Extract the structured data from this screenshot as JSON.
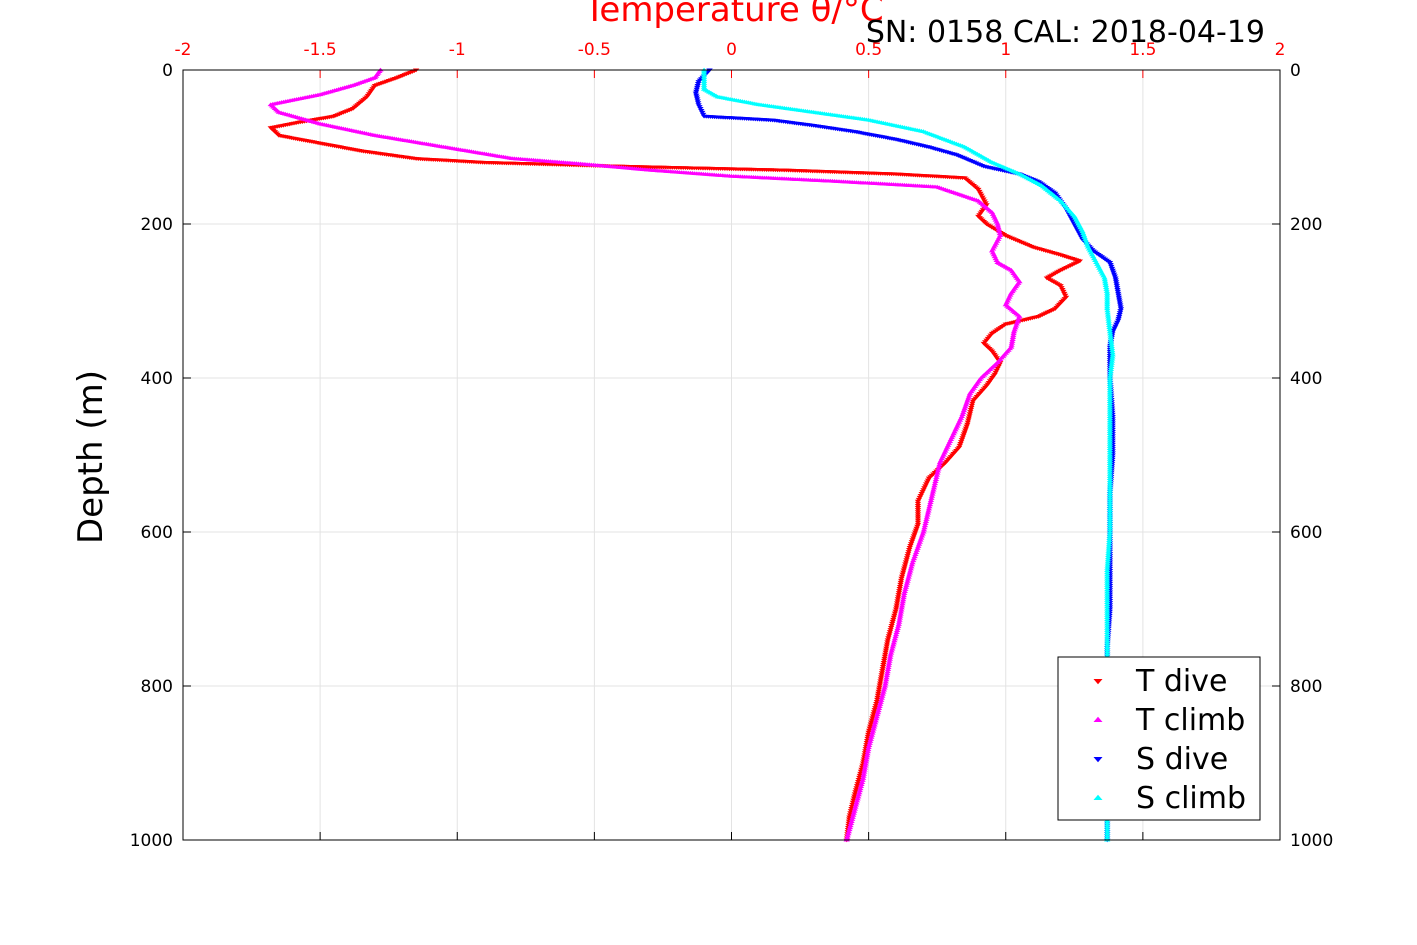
{
  "chart_data": {
    "type": "scatter",
    "title": "Temperature θ/°C",
    "subtitle": "SN: 0158  CAL: 2018-04-19",
    "ylabel": "Depth (m)",
    "xlim": [
      -2,
      2
    ],
    "ylim": [
      0,
      1000
    ],
    "y_reversed": true,
    "x_axis_position": "top",
    "x_ticks": [
      "-2",
      "-1.5",
      "-1",
      "-0.5",
      "0",
      "0.5",
      "1",
      "1.5",
      "2"
    ],
    "y_ticks": [
      "0",
      "200",
      "400",
      "600",
      "800",
      "1000"
    ],
    "grid": true,
    "legend_placement": "bottom-right",
    "series": [
      {
        "name": "T dive",
        "marker": "triangle-down",
        "color": "#ff0000",
        "points": [
          [
            -1.15,
            0
          ],
          [
            -1.22,
            10
          ],
          [
            -1.3,
            20
          ],
          [
            -1.33,
            35
          ],
          [
            -1.38,
            50
          ],
          [
            -1.45,
            60
          ],
          [
            -1.58,
            68
          ],
          [
            -1.68,
            75
          ],
          [
            -1.65,
            85
          ],
          [
            -1.5,
            95
          ],
          [
            -1.35,
            105
          ],
          [
            -1.15,
            115
          ],
          [
            -0.9,
            120
          ],
          [
            -0.4,
            125
          ],
          [
            0.2,
            130
          ],
          [
            0.6,
            135
          ],
          [
            0.85,
            140
          ],
          [
            0.9,
            155
          ],
          [
            0.93,
            175
          ],
          [
            0.9,
            190
          ],
          [
            0.93,
            200
          ],
          [
            1.0,
            215
          ],
          [
            1.1,
            230
          ],
          [
            1.2,
            240
          ],
          [
            1.27,
            248
          ],
          [
            1.2,
            260
          ],
          [
            1.15,
            270
          ],
          [
            1.2,
            280
          ],
          [
            1.22,
            295
          ],
          [
            1.18,
            310
          ],
          [
            1.12,
            320
          ],
          [
            1.0,
            330
          ],
          [
            0.95,
            342
          ],
          [
            0.92,
            355
          ],
          [
            0.95,
            365
          ],
          [
            0.98,
            380
          ],
          [
            0.96,
            395
          ],
          [
            0.93,
            410
          ],
          [
            0.88,
            430
          ],
          [
            0.86,
            460
          ],
          [
            0.83,
            490
          ],
          [
            0.78,
            510
          ],
          [
            0.72,
            530
          ],
          [
            0.68,
            560
          ],
          [
            0.68,
            590
          ],
          [
            0.65,
            620
          ],
          [
            0.62,
            660
          ],
          [
            0.6,
            700
          ],
          [
            0.57,
            740
          ],
          [
            0.55,
            780
          ],
          [
            0.53,
            820
          ],
          [
            0.5,
            860
          ],
          [
            0.48,
            900
          ],
          [
            0.45,
            940
          ],
          [
            0.43,
            970
          ],
          [
            0.42,
            1000
          ]
        ]
      },
      {
        "name": "T climb",
        "marker": "triangle-up",
        "color": "#ff00ff",
        "points": [
          [
            0.42,
            1000
          ],
          [
            0.45,
            960
          ],
          [
            0.48,
            920
          ],
          [
            0.5,
            880
          ],
          [
            0.53,
            840
          ],
          [
            0.56,
            800
          ],
          [
            0.58,
            760
          ],
          [
            0.61,
            720
          ],
          [
            0.63,
            680
          ],
          [
            0.66,
            640
          ],
          [
            0.7,
            600
          ],
          [
            0.72,
            570
          ],
          [
            0.74,
            540
          ],
          [
            0.76,
            510
          ],
          [
            0.8,
            480
          ],
          [
            0.84,
            450
          ],
          [
            0.87,
            420
          ],
          [
            0.91,
            400
          ],
          [
            0.97,
            380
          ],
          [
            1.02,
            360
          ],
          [
            1.03,
            340
          ],
          [
            1.05,
            320
          ],
          [
            1.0,
            305
          ],
          [
            1.02,
            290
          ],
          [
            1.05,
            275
          ],
          [
            1.02,
            260
          ],
          [
            0.97,
            250
          ],
          [
            0.95,
            235
          ],
          [
            0.98,
            215
          ],
          [
            0.97,
            200
          ],
          [
            0.95,
            185
          ],
          [
            0.9,
            170
          ],
          [
            0.75,
            152
          ],
          [
            0.4,
            145
          ],
          [
            0.0,
            138
          ],
          [
            -0.3,
            130
          ],
          [
            -0.55,
            122
          ],
          [
            -0.8,
            115
          ],
          [
            -1.05,
            100
          ],
          [
            -1.3,
            85
          ],
          [
            -1.5,
            70
          ],
          [
            -1.65,
            55
          ],
          [
            -1.68,
            45
          ],
          [
            -1.5,
            32
          ],
          [
            -1.38,
            20
          ],
          [
            -1.3,
            10
          ],
          [
            -1.28,
            0
          ]
        ]
      },
      {
        "name": "S dive",
        "marker": "triangle-down",
        "color": "#0000ff",
        "points": [
          [
            -0.08,
            0
          ],
          [
            -0.12,
            15
          ],
          [
            -0.13,
            30
          ],
          [
            -0.12,
            45
          ],
          [
            -0.1,
            60
          ],
          [
            0.0,
            62
          ],
          [
            0.15,
            65
          ],
          [
            0.3,
            72
          ],
          [
            0.45,
            80
          ],
          [
            0.6,
            90
          ],
          [
            0.72,
            100
          ],
          [
            0.82,
            110
          ],
          [
            0.92,
            125
          ],
          [
            1.05,
            135
          ],
          [
            1.12,
            145
          ],
          [
            1.18,
            160
          ],
          [
            1.22,
            180
          ],
          [
            1.25,
            200
          ],
          [
            1.28,
            220
          ],
          [
            1.32,
            235
          ],
          [
            1.38,
            250
          ],
          [
            1.4,
            270
          ],
          [
            1.41,
            290
          ],
          [
            1.42,
            310
          ],
          [
            1.41,
            325
          ],
          [
            1.39,
            340
          ],
          [
            1.38,
            360
          ],
          [
            1.38,
            400
          ],
          [
            1.39,
            450
          ],
          [
            1.39,
            500
          ],
          [
            1.38,
            550
          ],
          [
            1.38,
            600
          ],
          [
            1.38,
            650
          ],
          [
            1.38,
            700
          ],
          [
            1.37,
            750
          ],
          [
            1.37,
            800
          ],
          [
            1.37,
            850
          ],
          [
            1.37,
            900
          ],
          [
            1.37,
            950
          ],
          [
            1.37,
            1000
          ]
        ]
      },
      {
        "name": "S climb",
        "marker": "triangle-up",
        "color": "#00ffff",
        "points": [
          [
            1.37,
            1000
          ],
          [
            1.37,
            950
          ],
          [
            1.37,
            900
          ],
          [
            1.37,
            850
          ],
          [
            1.37,
            800
          ],
          [
            1.37,
            750
          ],
          [
            1.37,
            700
          ],
          [
            1.37,
            650
          ],
          [
            1.38,
            600
          ],
          [
            1.38,
            550
          ],
          [
            1.38,
            500
          ],
          [
            1.38,
            450
          ],
          [
            1.38,
            400
          ],
          [
            1.39,
            370
          ],
          [
            1.38,
            340
          ],
          [
            1.37,
            310
          ],
          [
            1.37,
            290
          ],
          [
            1.36,
            270
          ],
          [
            1.33,
            250
          ],
          [
            1.3,
            230
          ],
          [
            1.28,
            210
          ],
          [
            1.25,
            190
          ],
          [
            1.2,
            170
          ],
          [
            1.13,
            150
          ],
          [
            1.05,
            135
          ],
          [
            0.95,
            120
          ],
          [
            0.85,
            100
          ],
          [
            0.7,
            80
          ],
          [
            0.5,
            65
          ],
          [
            0.3,
            55
          ],
          [
            0.1,
            45
          ],
          [
            -0.05,
            35
          ],
          [
            -0.1,
            25
          ],
          [
            -0.1,
            10
          ],
          [
            -0.1,
            0
          ]
        ]
      }
    ]
  }
}
